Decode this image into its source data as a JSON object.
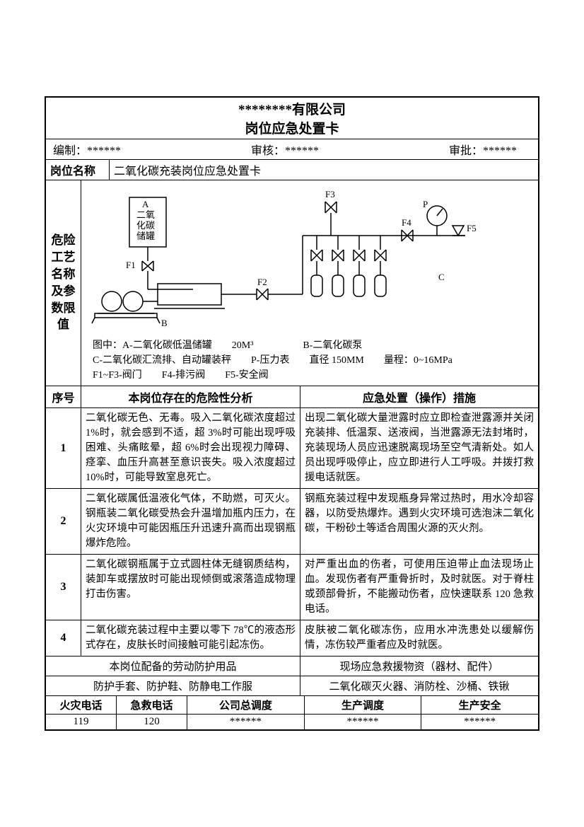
{
  "header": {
    "company": "********有限公司",
    "doc_title": "岗位应急处置卡",
    "prepared_label": "编制：",
    "prepared_value": "******",
    "reviewed_label": "审核：",
    "reviewed_value": "******",
    "approved_label": "审批：",
    "approved_value": "******"
  },
  "position": {
    "label": "岗位名称",
    "value": "二氧化碳充装岗位应急处置卡"
  },
  "diagram": {
    "label": "危险工艺名称及参数限值",
    "nodes": {
      "A": {
        "label_lines": [
          "A",
          "二氧",
          "化碳",
          "储罐"
        ]
      },
      "B": "B",
      "C": "C",
      "P": "P",
      "F1": "F1",
      "F2": "F2",
      "F3": "F3",
      "F4": "F4",
      "F5": "F5"
    },
    "caption_lines": [
      "图中：A-二氧化碳低温储罐　　20M³　　　　　B-二氧化碳泵",
      "C-二氧化碳汇流排、自动罐装秤　　P-压力表　　直径 150MM　　量程：0~16MPa",
      "F1~F3-阀门　　F4-排污阀　　F5-安全阀"
    ],
    "colors": {
      "stroke": "#000000",
      "bg": "#ffffff"
    }
  },
  "table": {
    "header_seq": "序号",
    "header_hazard": "本岗位存在的危险性分析",
    "header_measure": "应急处置（操作）措施",
    "rows": [
      {
        "seq": "1",
        "hazard": "二氧化碳无色、无毒。吸入二氧化碳浓度超过 1%时，就会感到不适，超 3%时可能出现呼吸困难、头痛眩晕，超 6%时会出现视力障碍、痉挛、血压升高甚至意识丧失。吸入浓度超过 10%时，可能导致室息死亡。",
        "measure": "出现二氧化碳大量泄露时应立即检查泄露源并关闭充装排、低温泵、送液阀，当泄露源无法封堵时，充装现场人员应迅速脱离现场至空气清新处。如人员出现呼吸停止，应立即进行人工呼吸。并拨打救援电话就医。"
      },
      {
        "seq": "2",
        "hazard": "二氧化碳属低温液化气体，不助燃，可灭火。钢瓶装二氧化碳受热会升温增加瓶内压力，在火灾环境中可能因瓶压升迅速升高而出现钢瓶爆炸危险。",
        "measure": "钢瓶充装过程中发现瓶身异常过热时，用水冷却容器，以防受热爆炸。遇到火灾环境可选泡沫二氧化碳，干粉砂土等适合周围火源的灭火剂。"
      },
      {
        "seq": "3",
        "hazard": "二氧化碳钢瓶属于立式圆柱体无缝钢质结构，装卸车或摆放时可能出现倾倒或滚落造成物理打击伤害。",
        "measure": "对严重出血的伤者，可使用压迫带止血法现场止血。发现伤者有严重骨折时，及时就医。对于脊柱或颈部骨折，不能搬动伤者，应快速联系 120 急救电话。"
      },
      {
        "seq": "4",
        "hazard": "二氧化碳充装过程中主要以零下 78℃的液态形式存在，皮肤长时间接触可能引起冻伤。",
        "measure": "皮肤被二氧化碳冻伤，应用水冲洗患处以缓解伤情，冻伤较严重者应及时就医。"
      }
    ]
  },
  "ppe": {
    "left_header": "本岗位配备的劳动防护用品",
    "right_header": "现场应急救援物资（器材、配件）",
    "left_value": "防护手套、防护鞋、防静电工作服",
    "right_value": "二氧化碳灭火器、消防栓、沙桶、铁锹"
  },
  "phones": {
    "headers": [
      "火灾电话",
      "急救电话",
      "公司总调度",
      "生产调度",
      "生产安全"
    ],
    "values": [
      "119",
      "120",
      "******",
      "******",
      "******"
    ]
  }
}
